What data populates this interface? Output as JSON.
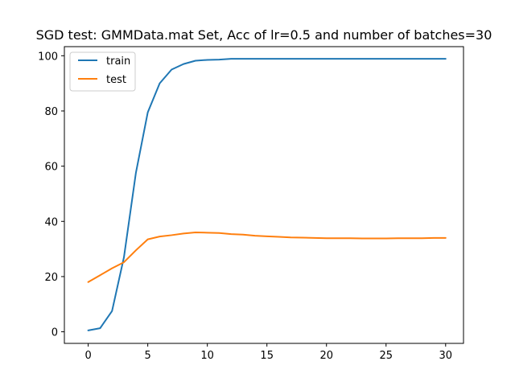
{
  "chart_data": {
    "type": "line",
    "title": "SGD test: GMMData.mat Set, Acc of lr=0.5 and number of batches=30",
    "xlabel": "",
    "ylabel": "",
    "xlim": [
      -2,
      31.5
    ],
    "ylim": [
      -4.2,
      103.3
    ],
    "xticks": [
      0,
      5,
      10,
      15,
      20,
      25,
      30
    ],
    "yticks": [
      0,
      20,
      40,
      60,
      80,
      100
    ],
    "grid": false,
    "legend_position": "top-left",
    "x": [
      0,
      1,
      2,
      3,
      4,
      5,
      6,
      7,
      8,
      9,
      10,
      11,
      12,
      13,
      14,
      15,
      16,
      17,
      18,
      19,
      20,
      21,
      22,
      23,
      24,
      25,
      26,
      27,
      28,
      29,
      30
    ],
    "series": [
      {
        "name": "train",
        "color": "#1f77b4",
        "values": [
          0.5,
          1.3,
          7.5,
          27.0,
          57.5,
          79.5,
          90.0,
          95.0,
          97.0,
          98.2,
          98.5,
          98.6,
          98.9,
          98.9,
          98.9,
          98.9,
          98.9,
          98.9,
          98.9,
          98.9,
          98.9,
          98.9,
          98.9,
          98.9,
          98.9,
          98.9,
          98.9,
          98.9,
          98.9,
          98.9,
          98.9
        ]
      },
      {
        "name": "test",
        "color": "#ff7f0e",
        "values": [
          18.0,
          20.5,
          23.0,
          25.2,
          29.5,
          33.5,
          34.5,
          35.0,
          35.6,
          36.0,
          35.9,
          35.8,
          35.4,
          35.2,
          34.8,
          34.6,
          34.4,
          34.2,
          34.1,
          34.0,
          33.9,
          33.9,
          33.9,
          33.8,
          33.8,
          33.8,
          33.9,
          33.9,
          33.9,
          34.0,
          34.0
        ]
      }
    ]
  }
}
